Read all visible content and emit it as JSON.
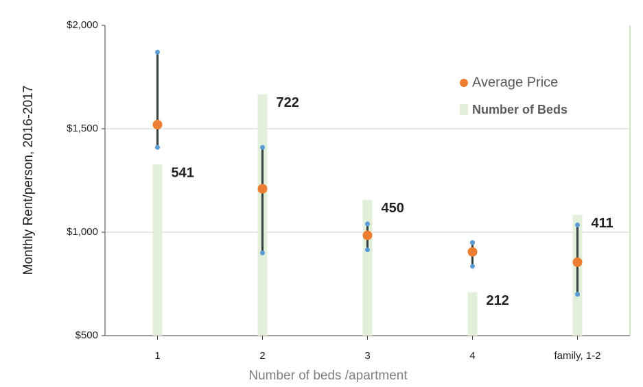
{
  "chart_data": {
    "type": "error_range",
    "y_label": "Monthly Rent/person,  2016-2017",
    "x_label": "Number of beds /apartment",
    "categories": [
      "1",
      "2",
      "3",
      "4",
      "family, 1-2"
    ],
    "ylim": [
      500,
      2000
    ],
    "yticks": [
      {
        "value": 500,
        "label": "$500"
      },
      {
        "value": 1000,
        "label": "$1,000"
      },
      {
        "value": 1500,
        "label": "$1,500"
      },
      {
        "value": 2000,
        "label": "$2,000"
      }
    ],
    "y2lim": [
      100,
      900
    ],
    "grid": true,
    "series": [
      {
        "name": "Average Price",
        "color": "#ed7d31",
        "values": [
          1520,
          1210,
          985,
          905,
          855
        ]
      },
      {
        "name": "Number of Beds",
        "color": "#e2efda",
        "axis": "y2",
        "values": [
          541,
          722,
          450,
          212,
          411
        ]
      }
    ],
    "range": {
      "low": [
        1410,
        900,
        915,
        835,
        700
      ],
      "high": [
        1870,
        1410,
        1040,
        950,
        1035
      ],
      "color": "#333f3f",
      "end_color": "#5b9bd5"
    }
  }
}
